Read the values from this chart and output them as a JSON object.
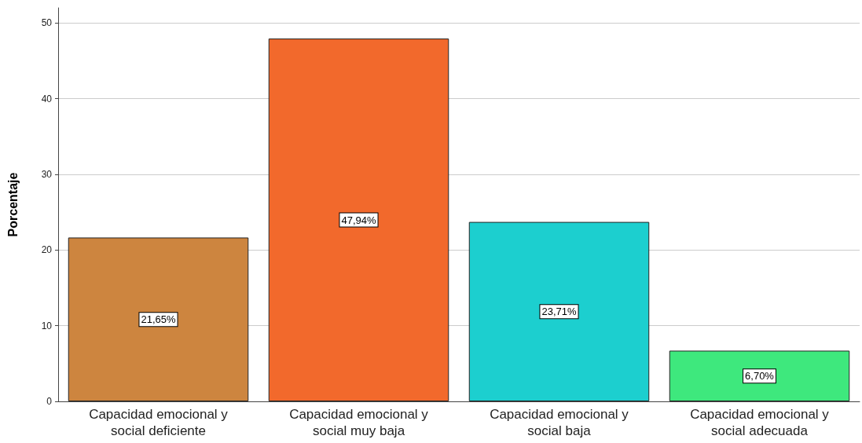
{
  "chart_data": {
    "type": "bar",
    "ylabel": "Porcentaje",
    "categories": [
      "Capacidad emocional y\nsocial deficiente",
      "Capacidad emocional y\nsocial muy baja",
      "Capacidad emocional y\nsocial baja",
      "Capacidad emocional y\nsocial adecuada"
    ],
    "values": [
      21.65,
      47.94,
      23.71,
      6.7
    ],
    "colors": [
      "#cd853f",
      "#f2692c",
      "#1ccfcf",
      "#3ee87d"
    ],
    "value_labels": [
      "21,65%",
      "47,94%",
      "23,71%",
      "6,70%"
    ],
    "ylim": [
      0,
      52
    ],
    "yticks": [
      0,
      10,
      20,
      30,
      40,
      50
    ],
    "grid": "y"
  }
}
